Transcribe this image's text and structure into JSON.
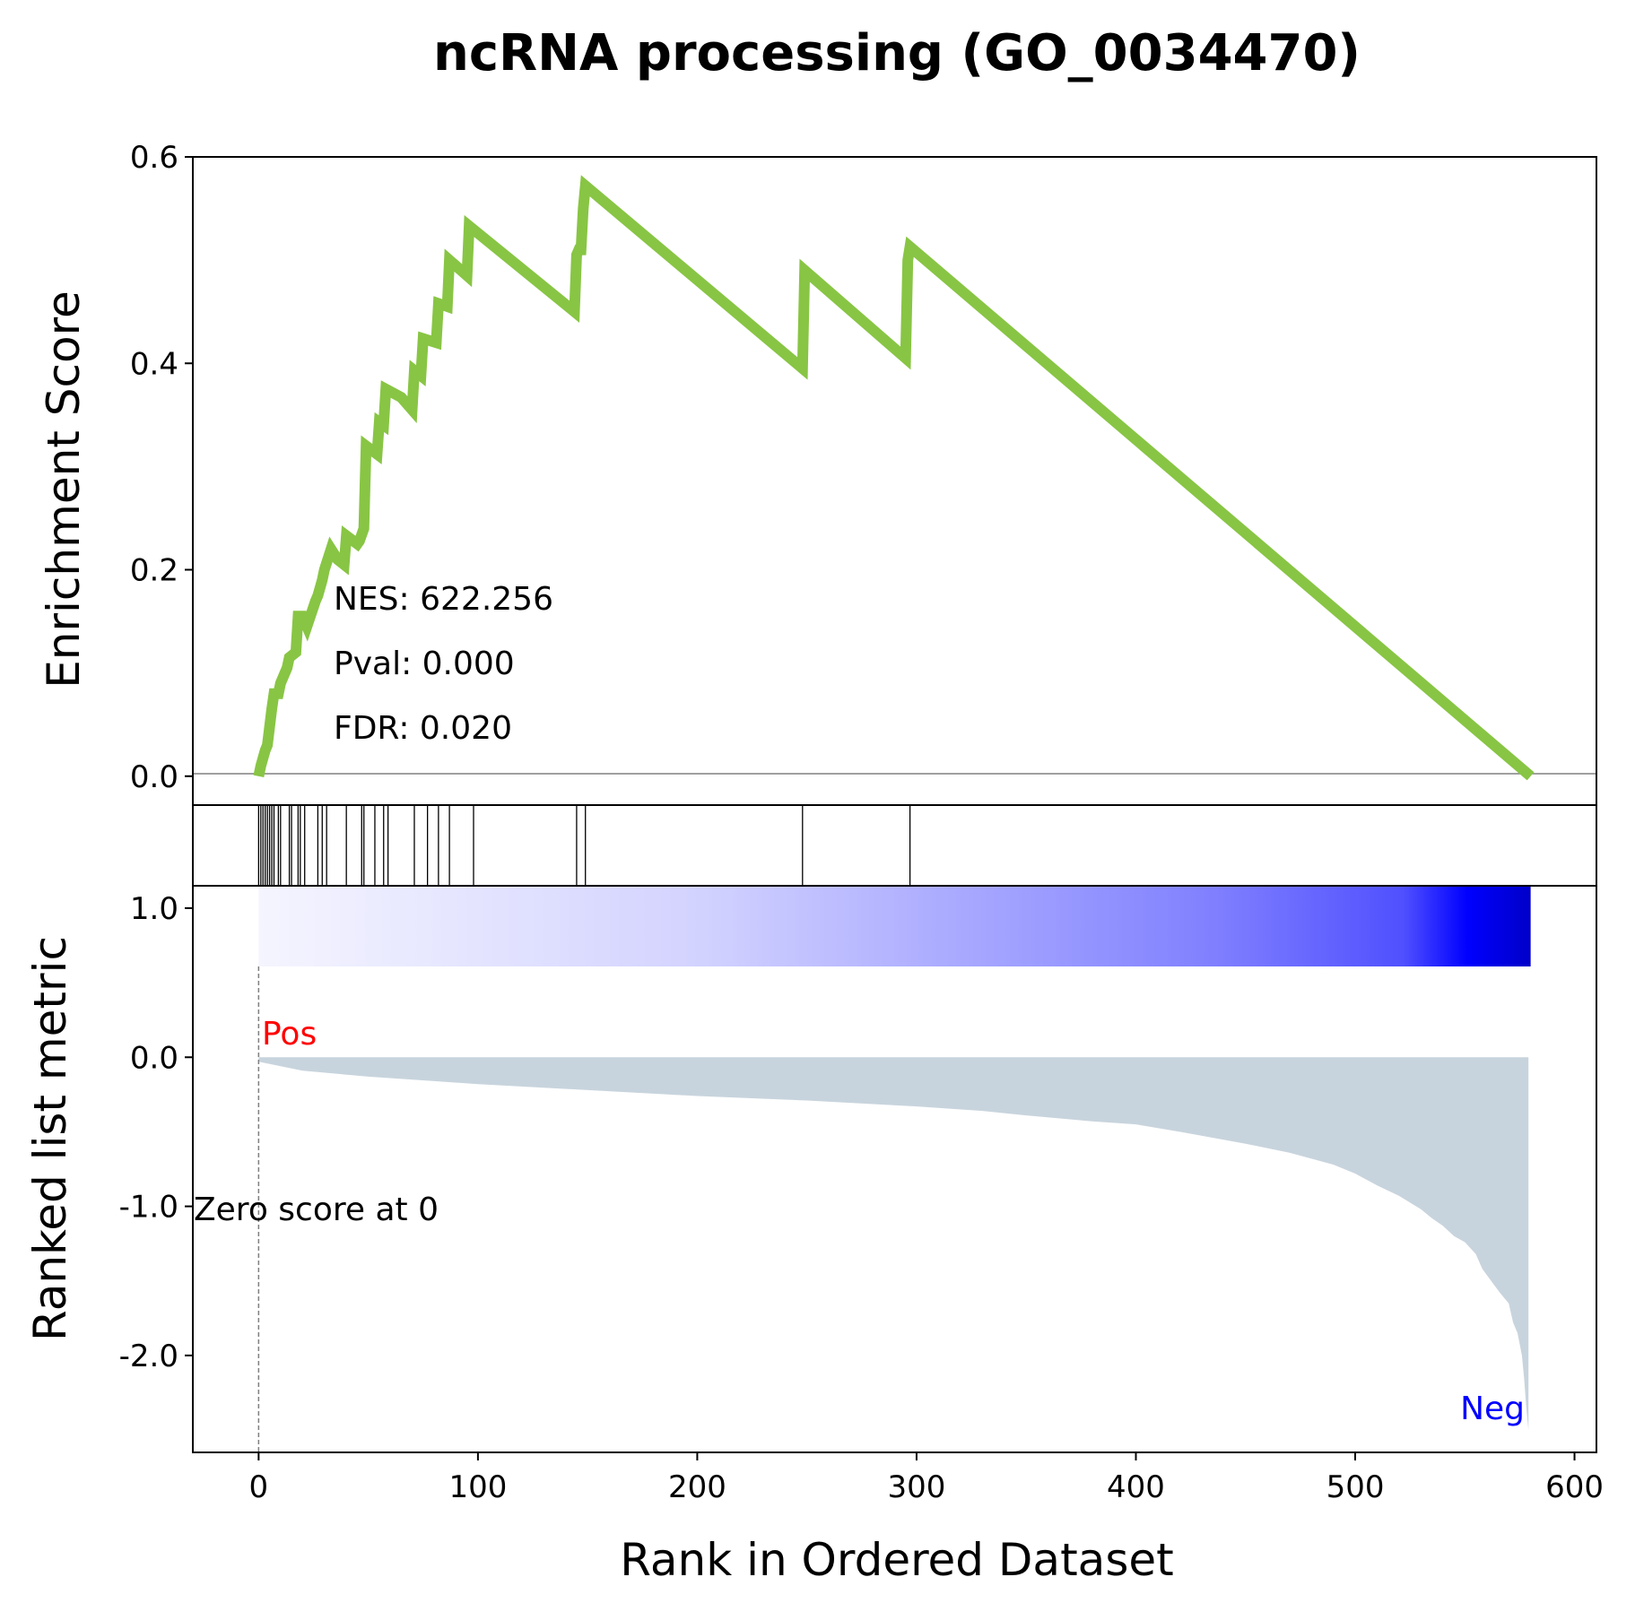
{
  "chart_data": {
    "type": "line",
    "title": "ncRNA processing (GO_0034470)",
    "xlabel": "Rank in Ordered Dataset",
    "xlim": [
      -30,
      610
    ],
    "xticks": [
      0,
      100,
      200,
      300,
      400,
      500,
      600
    ],
    "n_genes": 580,
    "enrichment": {
      "ylabel": "Enrichment Score",
      "ylim": [
        -0.028,
        0.6
      ],
      "yticks": [
        0.0,
        0.2,
        0.4,
        0.6
      ],
      "ytick_labels": [
        "0.0",
        "0.2",
        "0.4",
        "0.6"
      ],
      "line_color": "#88c544",
      "x": [
        0,
        1,
        3,
        4,
        6,
        7,
        9,
        10,
        13,
        14,
        17,
        18,
        20,
        22,
        26,
        27,
        29,
        30,
        33,
        36,
        39,
        40,
        45,
        46,
        48,
        49,
        54,
        55,
        57,
        58,
        65,
        70,
        71,
        74,
        75,
        81,
        82,
        86,
        87,
        95,
        96,
        144,
        145,
        146,
        147,
        148,
        149,
        248,
        249,
        295,
        296,
        297,
        580
      ],
      "y": [
        0.0,
        0.01,
        0.025,
        0.03,
        0.065,
        0.08,
        0.08,
        0.09,
        0.105,
        0.115,
        0.12,
        0.155,
        0.155,
        0.145,
        0.17,
        0.175,
        0.19,
        0.2,
        0.22,
        0.21,
        0.205,
        0.233,
        0.225,
        0.228,
        0.24,
        0.32,
        0.312,
        0.343,
        0.34,
        0.375,
        0.367,
        0.355,
        0.393,
        0.388,
        0.424,
        0.42,
        0.458,
        0.455,
        0.5,
        0.485,
        0.533,
        0.45,
        0.505,
        0.51,
        0.51,
        0.55,
        0.572,
        0.395,
        0.49,
        0.405,
        0.5,
        0.513,
        0.0
      ],
      "annotations": {
        "nes": "NES: 622.256",
        "pval": "Pval: 0.000",
        "fdr": "FDR: 0.020"
      }
    },
    "hits": [
      0,
      1,
      2,
      3,
      4,
      5,
      6,
      7,
      9,
      10,
      14,
      15,
      18,
      19,
      21,
      27,
      29,
      31,
      40,
      47,
      48,
      53,
      57,
      59,
      71,
      77,
      82,
      87,
      98,
      145,
      149,
      248,
      297
    ],
    "ranked_metric": {
      "ylabel": "Ranked list metric",
      "ylim": [
        -2.65,
        1.15
      ],
      "yticks": [
        1.0,
        0.0,
        -1.0,
        -2.0
      ],
      "ytick_labels": [
        "1.0",
        "0.0",
        "-1.0",
        "-2.0"
      ],
      "fill_color": "#c8d4dd",
      "x": [
        0,
        20,
        50,
        80,
        100,
        150,
        200,
        250,
        300,
        330,
        350,
        380,
        400,
        420,
        450,
        470,
        490,
        500,
        510,
        520,
        530,
        535,
        540,
        545,
        550,
        555,
        558,
        562,
        566,
        570,
        572,
        574,
        576,
        577,
        578,
        579
      ],
      "y": [
        -0.03,
        -0.09,
        -0.13,
        -0.16,
        -0.18,
        -0.22,
        -0.26,
        -0.29,
        -0.33,
        -0.36,
        -0.39,
        -0.43,
        -0.45,
        -0.5,
        -0.58,
        -0.64,
        -0.72,
        -0.78,
        -0.86,
        -0.93,
        -1.02,
        -1.08,
        -1.13,
        -1.2,
        -1.24,
        -1.32,
        -1.42,
        -1.5,
        -1.58,
        -1.65,
        -1.78,
        -1.85,
        -2.0,
        -2.15,
        -2.35,
        -2.5
      ],
      "pos_label": "Pos",
      "neg_label": "Neg",
      "zero_label": "Zero score at 0",
      "zero_rank": 0
    },
    "colorbar": {
      "from_color": "#f5f5ff",
      "mid_color": "#8080ff",
      "to_color": "#0000c8"
    }
  }
}
